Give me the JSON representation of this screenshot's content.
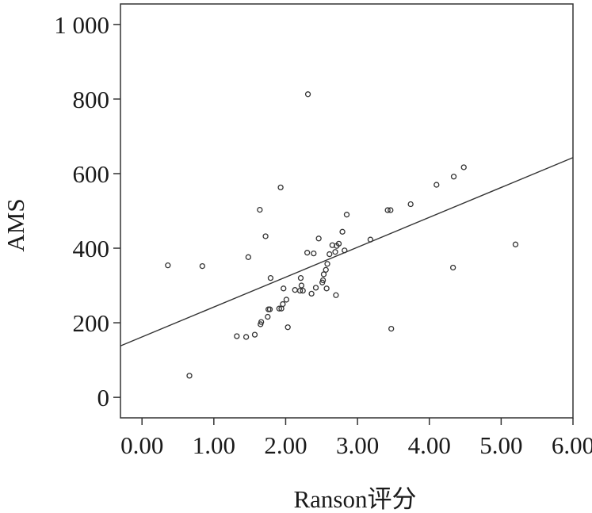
{
  "chart_data": {
    "type": "scatter",
    "xlabel": "Ranson评分",
    "ylabel": "AMS",
    "xlim": [
      -0.3,
      6.0
    ],
    "ylim": [
      -55,
      1055
    ],
    "x_ticks": [
      0,
      1,
      2,
      3,
      4,
      5,
      6
    ],
    "x_tick_labels": [
      "0.00",
      "1.00",
      "2.00",
      "3.00",
      "4.00",
      "5.00",
      "6.00"
    ],
    "y_ticks": [
      0,
      200,
      400,
      600,
      800,
      1000
    ],
    "y_tick_labels": [
      "0",
      "200",
      "400",
      "600",
      "800",
      "1 000"
    ],
    "grid": false,
    "fit_line": {
      "x": [
        -0.3,
        6.0
      ],
      "y": [
        138,
        643
      ]
    },
    "points": [
      [
        0.36,
        354
      ],
      [
        0.66,
        58
      ],
      [
        0.84,
        352
      ],
      [
        1.32,
        164
      ],
      [
        1.45,
        162
      ],
      [
        1.48,
        376
      ],
      [
        1.57,
        168
      ],
      [
        1.64,
        503
      ],
      [
        1.65,
        196
      ],
      [
        1.66,
        202
      ],
      [
        1.72,
        432
      ],
      [
        1.75,
        216
      ],
      [
        1.76,
        236
      ],
      [
        1.78,
        236
      ],
      [
        1.79,
        320
      ],
      [
        1.91,
        238
      ],
      [
        1.93,
        563
      ],
      [
        1.94,
        238
      ],
      [
        1.96,
        250
      ],
      [
        1.97,
        292
      ],
      [
        2.01,
        262
      ],
      [
        2.03,
        188
      ],
      [
        2.13,
        288
      ],
      [
        2.2,
        286
      ],
      [
        2.21,
        320
      ],
      [
        2.22,
        300
      ],
      [
        2.24,
        286
      ],
      [
        2.3,
        388
      ],
      [
        2.31,
        813
      ],
      [
        2.36,
        278
      ],
      [
        2.39,
        386
      ],
      [
        2.42,
        294
      ],
      [
        2.46,
        426
      ],
      [
        2.51,
        308
      ],
      [
        2.52,
        314
      ],
      [
        2.53,
        330
      ],
      [
        2.56,
        342
      ],
      [
        2.57,
        292
      ],
      [
        2.58,
        358
      ],
      [
        2.61,
        384
      ],
      [
        2.65,
        408
      ],
      [
        2.69,
        390
      ],
      [
        2.7,
        274
      ],
      [
        2.71,
        406
      ],
      [
        2.74,
        412
      ],
      [
        2.79,
        444
      ],
      [
        2.82,
        394
      ],
      [
        2.85,
        490
      ],
      [
        3.18,
        423
      ],
      [
        3.42,
        502
      ],
      [
        3.46,
        502
      ],
      [
        3.47,
        184
      ],
      [
        3.74,
        518
      ],
      [
        4.1,
        570
      ],
      [
        4.33,
        348
      ],
      [
        4.34,
        592
      ],
      [
        4.48,
        617
      ],
      [
        5.2,
        410
      ]
    ]
  }
}
